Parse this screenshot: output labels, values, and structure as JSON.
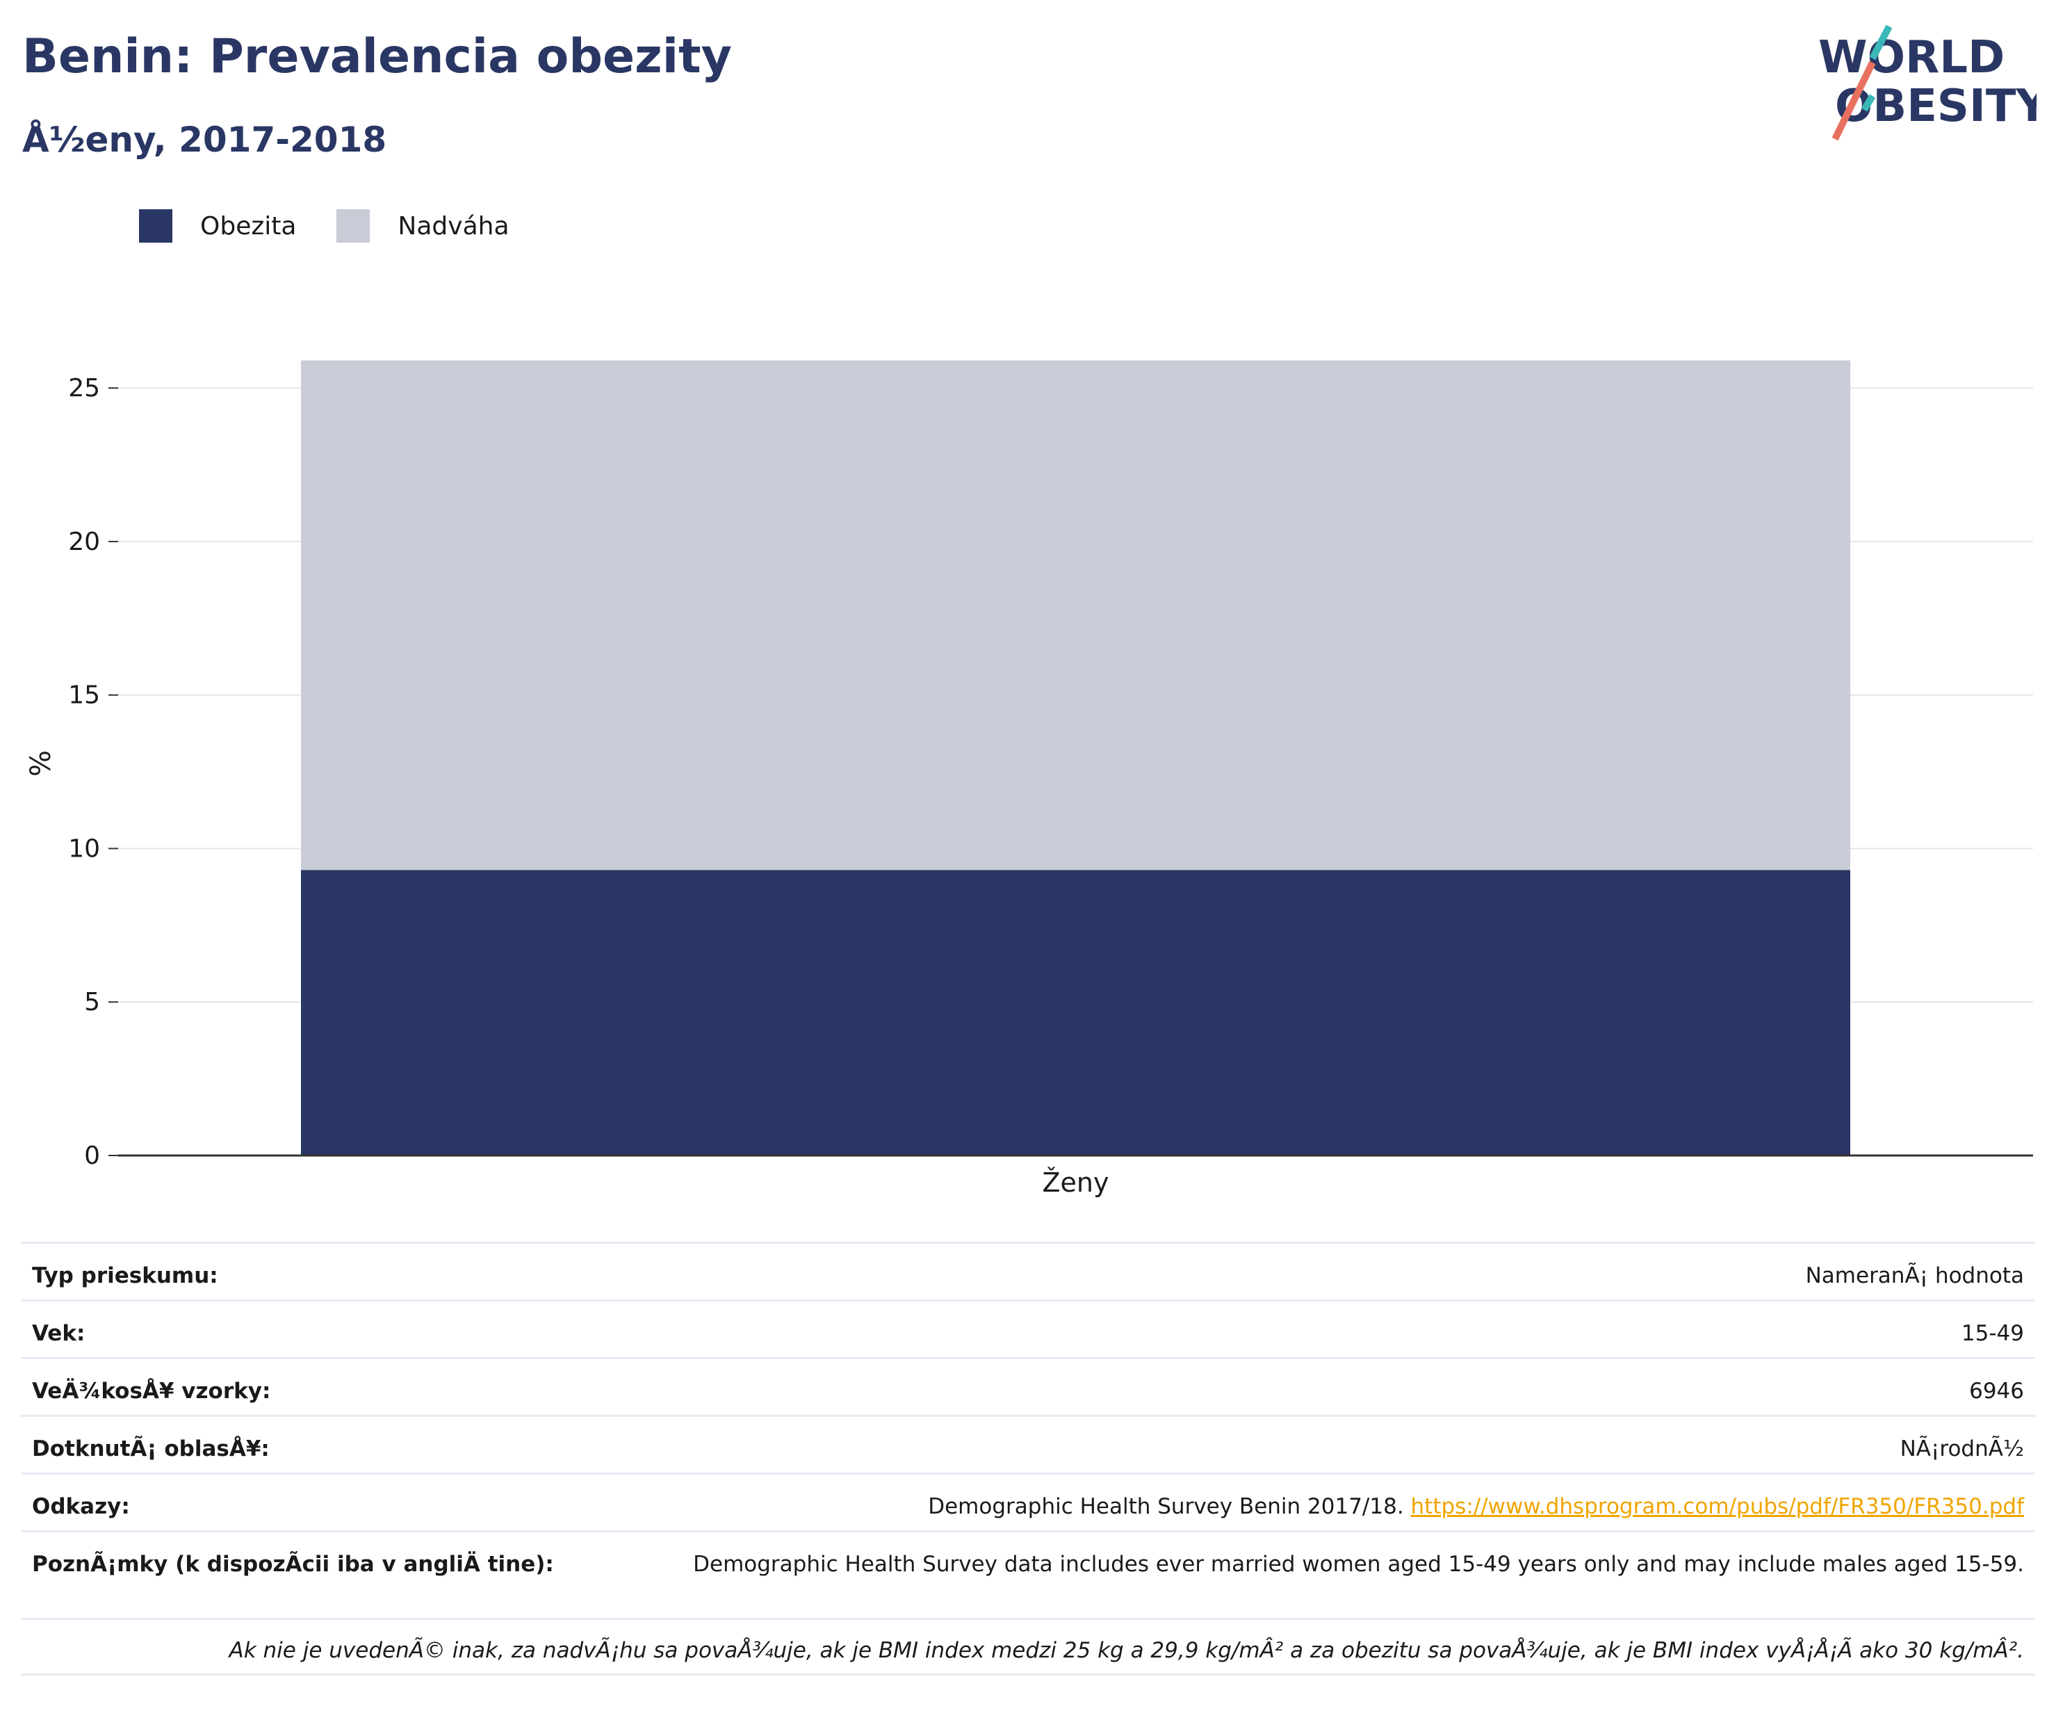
{
  "header": {
    "title": "Benin: Prevalencia obezity",
    "subtitle": "Å½eny, 2017-2018"
  },
  "logo": {
    "line1": "WORLD",
    "line2": "OBESITY",
    "colors": {
      "text": "#2a3764",
      "slash_top": "#3bb8b8",
      "slash_bottom": "#e8705f"
    }
  },
  "legend": {
    "items": [
      {
        "label": "Obezita",
        "color": "#2a3764"
      },
      {
        "label": "Nadváha",
        "color": "#c9ccd7"
      }
    ]
  },
  "chart_data": {
    "type": "bar",
    "stacked": true,
    "categories": [
      "Ženy"
    ],
    "series": [
      {
        "name": "Obezita",
        "values": [
          9.3
        ],
        "color": "#2a3764"
      },
      {
        "name": "Nadváha",
        "values": [
          16.6
        ],
        "color": "#c9ccd7"
      }
    ],
    "ylabel": "%",
    "ylim": [
      0,
      26
    ],
    "yticks": [
      0,
      5,
      10,
      15,
      20,
      25
    ],
    "grid": true,
    "legend_position": "top-left"
  },
  "info": {
    "rows": [
      {
        "label": "Typ prieskumu:",
        "value": "NameranÃ¡ hodnota"
      },
      {
        "label": "Vek:",
        "value": "15-49"
      },
      {
        "label": "VeÄ¾kosÅ¥ vzorky:",
        "value": "6946"
      },
      {
        "label": "DotknutÃ¡ oblasÅ¥:",
        "value": "NÃ¡rodnÃ½"
      }
    ],
    "references": {
      "label": "Odkazy:",
      "text": "Demographic Health Survey Benin 2017/18.",
      "link": "https://www.dhsprogram.com/pubs/pdf/FR350/FR350.pdf"
    },
    "notes": {
      "label": "PoznÃ¡mky (k dispozÃ­cii iba v angliÄ tine):",
      "value": "Demographic Health Survey data includes ever married women aged 15-49 years only and may include males aged 15-59."
    },
    "footnote": "Ak nie je uvedenÃ© inak, za nadvÃ¡hu sa povaÅ¾uje, ak je BMI index medzi 25 kg a 29,9 kg/mÂ² a za obezitu sa povaÅ¾uje, ak je BMI index vyÅ¡Å¡Ã ako 30 kg/mÂ²."
  }
}
